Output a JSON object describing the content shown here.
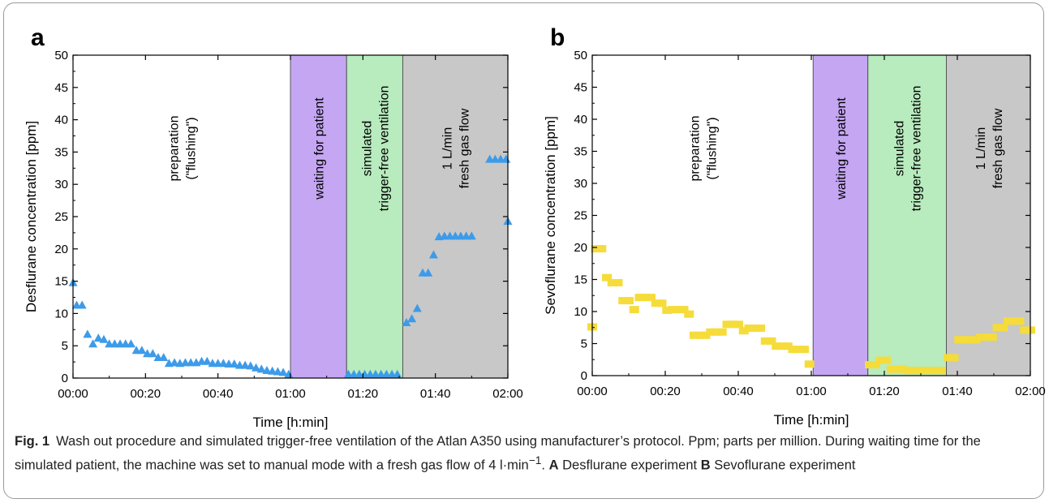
{
  "chart_data": [
    {
      "panel_label": "a",
      "type": "scatter",
      "xlabel": "Time [h:min]",
      "ylabel": "Desflurane concentration [ppm]",
      "xlim": [
        0,
        120
      ],
      "ylim": [
        0,
        50
      ],
      "xticks": [
        0,
        20,
        40,
        60,
        80,
        100,
        120
      ],
      "xtick_labels": [
        "00:00",
        "00:20",
        "00:40",
        "01:00",
        "01:20",
        "01:40",
        "02:00"
      ],
      "yticks": [
        0,
        5,
        10,
        15,
        20,
        25,
        30,
        35,
        40,
        45,
        50
      ],
      "ytick_labels": [
        "0",
        "5",
        "10",
        "15",
        "20",
        "25",
        "30",
        "35",
        "40",
        "45",
        "50"
      ],
      "grid": false,
      "regions": [
        {
          "x0": 0,
          "x1": 60,
          "color": "#ffffff",
          "lines": [
            "preparation",
            "(\"flushing\")"
          ]
        },
        {
          "x0": 60,
          "x1": 75.5,
          "color": "#c5a6f3",
          "lines": [
            "waiting for patient"
          ]
        },
        {
          "x0": 75.5,
          "x1": 91,
          "color": "#b8ebbe",
          "lines": [
            "simulated",
            "trigger-free ventilation"
          ]
        },
        {
          "x0": 91,
          "x1": 120,
          "color": "#c8c8c8",
          "lines": [
            "1 L/min",
            "fresh gas flow"
          ]
        }
      ],
      "series": [
        {
          "marker": "triangle",
          "color": "#3d9be9",
          "points": [
            [
              0,
              14.8
            ],
            [
              1,
              11.3
            ],
            [
              2.5,
              11.3
            ],
            [
              4,
              6.8
            ],
            [
              5.5,
              5.3
            ],
            [
              7,
              6.2
            ],
            [
              8.5,
              6.0
            ],
            [
              10,
              5.3
            ],
            [
              11.5,
              5.3
            ],
            [
              13,
              5.3
            ],
            [
              14.5,
              5.3
            ],
            [
              16,
              5.3
            ],
            [
              17.5,
              4.3
            ],
            [
              19,
              4.3
            ],
            [
              20.5,
              3.8
            ],
            [
              22,
              3.8
            ],
            [
              23.5,
              3.2
            ],
            [
              25,
              3.2
            ],
            [
              26.5,
              2.3
            ],
            [
              28,
              2.4
            ],
            [
              29.5,
              2.3
            ],
            [
              31,
              2.4
            ],
            [
              32.5,
              2.4
            ],
            [
              34,
              2.4
            ],
            [
              35.5,
              2.6
            ],
            [
              37,
              2.6
            ],
            [
              38.5,
              2.3
            ],
            [
              40,
              2.3
            ],
            [
              41.5,
              2.3
            ],
            [
              43,
              2.2
            ],
            [
              44.5,
              2.2
            ],
            [
              46,
              2.0
            ],
            [
              47.5,
              2.0
            ],
            [
              49,
              1.9
            ],
            [
              50.5,
              1.6
            ],
            [
              52,
              1.4
            ],
            [
              53.5,
              1.2
            ],
            [
              55,
              1.1
            ],
            [
              56.5,
              1.0
            ],
            [
              58,
              0.9
            ],
            [
              59.5,
              0.6
            ],
            [
              76,
              0.6
            ],
            [
              77.5,
              0.6
            ],
            [
              79,
              0.6
            ],
            [
              80.5,
              0.6
            ],
            [
              82,
              0.6
            ],
            [
              83.5,
              0.6
            ],
            [
              85,
              0.6
            ],
            [
              86.5,
              0.6
            ],
            [
              88,
              0.6
            ],
            [
              89.5,
              0.6
            ],
            [
              92,
              8.6
            ],
            [
              93.5,
              9.2
            ],
            [
              95,
              10.8
            ],
            [
              96.5,
              16.3
            ],
            [
              98,
              16.3
            ],
            [
              99.5,
              19.1
            ],
            [
              101,
              21.9
            ],
            [
              102.5,
              22.0
            ],
            [
              104,
              22.0
            ],
            [
              105.5,
              22.0
            ],
            [
              107,
              22.0
            ],
            [
              108.5,
              22.0
            ],
            [
              110,
              22.0
            ],
            [
              115,
              33.9
            ],
            [
              116.5,
              33.9
            ],
            [
              118,
              33.9
            ],
            [
              119.5,
              33.9
            ],
            [
              120,
              24.3
            ]
          ]
        }
      ]
    },
    {
      "panel_label": "b",
      "type": "scatter",
      "xlabel": "Time [h:min]",
      "ylabel": "Sevoflurane concentration [ppm]",
      "xlim": [
        0,
        120
      ],
      "ylim": [
        0,
        50
      ],
      "xticks": [
        0,
        20,
        40,
        60,
        80,
        100,
        120
      ],
      "xtick_labels": [
        "00:00",
        "00:20",
        "00:40",
        "01:00",
        "01:20",
        "01:40",
        "02:00"
      ],
      "yticks": [
        0,
        5,
        10,
        15,
        20,
        25,
        30,
        35,
        40,
        45,
        50
      ],
      "ytick_labels": [
        "0",
        "5",
        "10",
        "15",
        "20",
        "25",
        "30",
        "35",
        "40",
        "45",
        "50"
      ],
      "grid": false,
      "regions": [
        {
          "x0": 0,
          "x1": 60.5,
          "color": "#ffffff",
          "lines": [
            "preparation",
            "(\"flushing\")"
          ]
        },
        {
          "x0": 60.5,
          "x1": 75.5,
          "color": "#c5a6f3",
          "lines": [
            "waiting for patient"
          ]
        },
        {
          "x0": 75.5,
          "x1": 97,
          "color": "#b8ebbe",
          "lines": [
            "simulated",
            "trigger-free ventilation"
          ]
        },
        {
          "x0": 97,
          "x1": 120,
          "color": "#c8c8c8",
          "lines": [
            "1 L/min",
            "fresh gas flow"
          ]
        }
      ],
      "series": [
        {
          "marker": "square",
          "color": "#f5dc3a",
          "points": [
            [
              0,
              7.6
            ],
            [
              1,
              19.8
            ],
            [
              2.5,
              19.8
            ],
            [
              4,
              15.3
            ],
            [
              5.5,
              14.5
            ],
            [
              7,
              14.5
            ],
            [
              8.5,
              11.7
            ],
            [
              10,
              11.7
            ],
            [
              11.5,
              10.3
            ],
            [
              13,
              12.2
            ],
            [
              14.5,
              12.2
            ],
            [
              16,
              12.2
            ],
            [
              17.5,
              11.3
            ],
            [
              19,
              11.3
            ],
            [
              20.5,
              10.2
            ],
            [
              22,
              10.3
            ],
            [
              23.5,
              10.3
            ],
            [
              25,
              10.3
            ],
            [
              26.5,
              9.6
            ],
            [
              28,
              6.3
            ],
            [
              29.5,
              6.3
            ],
            [
              31,
              6.3
            ],
            [
              32.5,
              6.8
            ],
            [
              34,
              6.8
            ],
            [
              35.5,
              6.8
            ],
            [
              37,
              8.0
            ],
            [
              38.5,
              8.0
            ],
            [
              40,
              8.0
            ],
            [
              41.5,
              7.0
            ],
            [
              43,
              7.4
            ],
            [
              44.5,
              7.4
            ],
            [
              46,
              7.4
            ],
            [
              47.5,
              5.4
            ],
            [
              49,
              5.4
            ],
            [
              50.5,
              4.6
            ],
            [
              52,
              4.6
            ],
            [
              53.5,
              4.6
            ],
            [
              55,
              4.1
            ],
            [
              56.5,
              4.1
            ],
            [
              58,
              4.1
            ],
            [
              59.5,
              1.8
            ],
            [
              76,
              1.7
            ],
            [
              77.5,
              1.7
            ],
            [
              79,
              2.4
            ],
            [
              80.5,
              2.4
            ],
            [
              82,
              1.0
            ],
            [
              83.5,
              1.0
            ],
            [
              85,
              1.0
            ],
            [
              86.5,
              0.8
            ],
            [
              88,
              0.8
            ],
            [
              89.5,
              0.8
            ],
            [
              91,
              0.8
            ],
            [
              92.5,
              0.8
            ],
            [
              94,
              0.8
            ],
            [
              95.5,
              0.8
            ],
            [
              97.5,
              2.8
            ],
            [
              99,
              2.8
            ],
            [
              100.5,
              5.6
            ],
            [
              102,
              5.6
            ],
            [
              103.5,
              5.6
            ],
            [
              105,
              5.6
            ],
            [
              106.5,
              6.0
            ],
            [
              108,
              6.0
            ],
            [
              109.5,
              6.0
            ],
            [
              111,
              7.5
            ],
            [
              112.5,
              7.5
            ],
            [
              114,
              8.5
            ],
            [
              115.5,
              8.5
            ],
            [
              117,
              8.5
            ],
            [
              118.5,
              7.1
            ],
            [
              120,
              7.1
            ]
          ]
        }
      ]
    }
  ],
  "caption": {
    "fig_label": "Fig. 1",
    "text_1": "Wash out procedure and simulated trigger-free ventilation of the Atlan A350 using manufacturer’s protocol. Ppm; parts per million. During waiting time for the simulated patient, the machine was set to manual mode with a fresh gas flow of 4 l·min",
    "superscript": "−1",
    "text_2": ". ",
    "label_a": "A",
    "text_a": " Desflurane experiment ",
    "label_b": "B",
    "text_b": " Sevoflurane experiment"
  }
}
